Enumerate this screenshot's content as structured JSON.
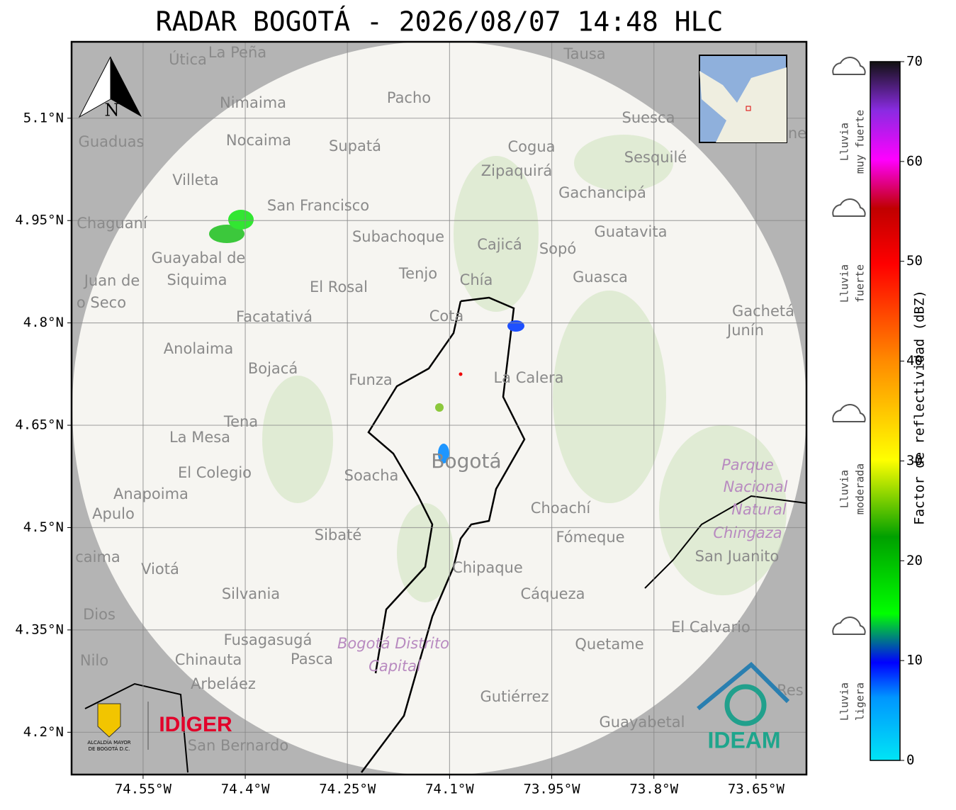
{
  "title": "RADAR BOGOTÁ - 2026/08/07 14:48 HLC",
  "map": {
    "xlim": [
      -74.655,
      -73.576
    ],
    "ylim": [
      4.138,
      5.212
    ],
    "xticks": [
      {
        "value": -74.55,
        "label": "74.55°W"
      },
      {
        "value": -74.4,
        "label": "74.4°W"
      },
      {
        "value": -74.25,
        "label": "74.25°W"
      },
      {
        "value": -74.1,
        "label": "74.1°W"
      },
      {
        "value": -73.95,
        "label": "73.95°W"
      },
      {
        "value": -73.8,
        "label": "73.8°W"
      },
      {
        "value": -73.65,
        "label": "73.65°W"
      }
    ],
    "yticks": [
      {
        "value": 4.2,
        "label": "4.2°N"
      },
      {
        "value": 4.35,
        "label": "4.35°N"
      },
      {
        "value": 4.5,
        "label": "4.5°N"
      },
      {
        "value": 4.65,
        "label": "4.65°N"
      },
      {
        "value": 4.8,
        "label": "4.8°N"
      },
      {
        "value": 4.95,
        "label": "4.95°N"
      },
      {
        "value": 5.1,
        "label": "5.1°N"
      }
    ],
    "grid": true,
    "places": [
      "Útica",
      "La Peña",
      "Tausa",
      "Pacho",
      "Nimaima",
      "Guaduas",
      "Nocaima",
      "Supatá",
      "Cogua",
      "Suesca",
      "Zipaquirá",
      "Sesquilé",
      "Villeta",
      "Gachancipá",
      "San Francisco",
      "Chaguaní",
      "Guatavita",
      "Subachoque",
      "Cajicá",
      "Sopó",
      "Guayabal de",
      "Siquima",
      "Juan de",
      "Tenjo",
      "Chía",
      "Guasca",
      "El Rosal",
      "o Seco",
      "Cota",
      "Facatativá",
      "Gachetá",
      "Junín",
      "Anolaima",
      "Bojacá",
      "Funza",
      "La Calera",
      "Tena",
      "La Mesa",
      "Soacha",
      "Bogotá",
      "El Colegio",
      "Parque",
      "Nacional",
      "Natural",
      "Chingaza",
      "Anapoima",
      "Apulo",
      "Choachí",
      "Sibaté",
      "Fómeque",
      "San Juanito",
      "caima",
      "Viotá",
      "Chipaque",
      "Silvania",
      "Cáqueza",
      "Dios",
      "El Calvario",
      "Fusagasugá",
      "Bogotá Distrito",
      "Capital",
      "Quetame",
      "Nilo",
      "Chinauta",
      "Pasca",
      "Arbeláez",
      "Gutiérrez",
      "Guayabetal",
      "San Bernardo",
      "Res",
      "ne"
    ],
    "north": "N"
  },
  "colorbar": {
    "label": "Factor de reflectividad (dBZ)",
    "range": [
      0,
      70
    ],
    "ticks": [
      0,
      10,
      20,
      30,
      40,
      50,
      60,
      70
    ],
    "categories": [
      [
        "Lluvia",
        "muy fuerte"
      ],
      [
        "Lluvia",
        "fuerte"
      ],
      [
        "Lluvia",
        "moderada"
      ],
      [
        "Lluvia",
        "ligera"
      ]
    ]
  },
  "logos": {
    "alcaldia": [
      "ALCALDÍA MAYOR",
      "DE BOGOTÁ D.C."
    ],
    "idiger": "IDIGER",
    "ideam": "IDEAM"
  }
}
